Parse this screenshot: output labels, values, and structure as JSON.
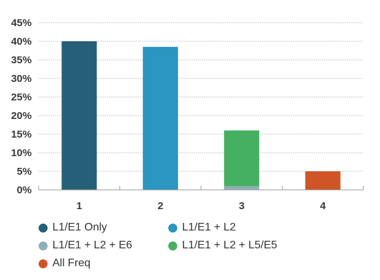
{
  "chart_data": {
    "type": "bar",
    "categories": [
      "1",
      "2",
      "3",
      "4"
    ],
    "yticks": [
      "0%",
      "5%",
      "10%",
      "15%",
      "20%",
      "25%",
      "30%",
      "35%",
      "40%",
      "45%"
    ],
    "ylim": [
      0,
      45
    ],
    "grid": true,
    "legend_position": "bottom",
    "series": [
      {
        "name": "L1/E1 Only",
        "color": "#265f78",
        "values": [
          40,
          0,
          0,
          0
        ]
      },
      {
        "name": "L1/E1 + L2",
        "color": "#2b96c1",
        "values": [
          0,
          38.5,
          0,
          0
        ]
      },
      {
        "name": "L1/E1 + L2 + E6",
        "color": "#8fafb9",
        "values": [
          0,
          0,
          1,
          0
        ]
      },
      {
        "name": "L1/E1 + L2 + L5/E5",
        "color": "#45b061",
        "values": [
          0,
          0,
          15,
          0
        ]
      },
      {
        "name": "All Freq",
        "color": "#cf5527",
        "values": [
          0,
          0,
          0,
          5
        ]
      }
    ]
  }
}
